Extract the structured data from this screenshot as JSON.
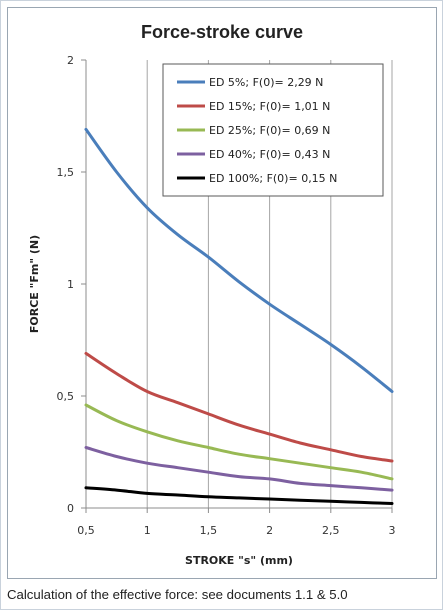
{
  "chart_data": {
    "type": "line",
    "title": "Force-stroke curve",
    "xlabel": "STROKE \"s\" (mm)",
    "ylabel": "FORCE \"Fm\" (N)",
    "xlim": [
      0.5,
      3
    ],
    "ylim": [
      0,
      2
    ],
    "xticks": [
      "0,5",
      "1",
      "1,5",
      "2",
      "2,5",
      "3"
    ],
    "yticks": [
      "0",
      "0,5",
      "1",
      "1,5",
      "2"
    ],
    "xtick_values": [
      0.5,
      1,
      1.5,
      2,
      2.5,
      3
    ],
    "ytick_values": [
      0,
      0.5,
      1,
      1.5,
      2
    ],
    "grid": "vertical",
    "legend_position": "top-right",
    "x": [
      0.5,
      0.75,
      1,
      1.25,
      1.5,
      1.75,
      2,
      2.25,
      2.5,
      2.75,
      3
    ],
    "series": [
      {
        "name": "ED 5%; F(0)= 2,29 N",
        "color": "#4a7ebb",
        "values": [
          1.69,
          1.5,
          1.34,
          1.22,
          1.12,
          1.01,
          0.91,
          0.82,
          0.73,
          0.63,
          0.52
        ]
      },
      {
        "name": "ED 15%; F(0)= 1,01 N",
        "color": "#be4b48",
        "values": [
          0.69,
          0.6,
          0.52,
          0.47,
          0.42,
          0.37,
          0.33,
          0.29,
          0.26,
          0.23,
          0.21
        ]
      },
      {
        "name": "ED 25%; F(0)= 0,69 N",
        "color": "#98b954",
        "values": [
          0.46,
          0.39,
          0.34,
          0.3,
          0.27,
          0.24,
          0.22,
          0.2,
          0.18,
          0.16,
          0.13
        ]
      },
      {
        "name": "ED 40%; F(0)= 0,43 N",
        "color": "#7d60a0",
        "values": [
          0.27,
          0.23,
          0.2,
          0.18,
          0.16,
          0.14,
          0.13,
          0.11,
          0.1,
          0.09,
          0.08
        ]
      },
      {
        "name": "ED 100%; F(0)= 0,15 N",
        "color": "#000000",
        "values": [
          0.09,
          0.08,
          0.065,
          0.058,
          0.05,
          0.045,
          0.04,
          0.035,
          0.03,
          0.025,
          0.02
        ]
      }
    ]
  },
  "footer_text": "Calculation of the effective force: see documents 1.1 & 5.0"
}
